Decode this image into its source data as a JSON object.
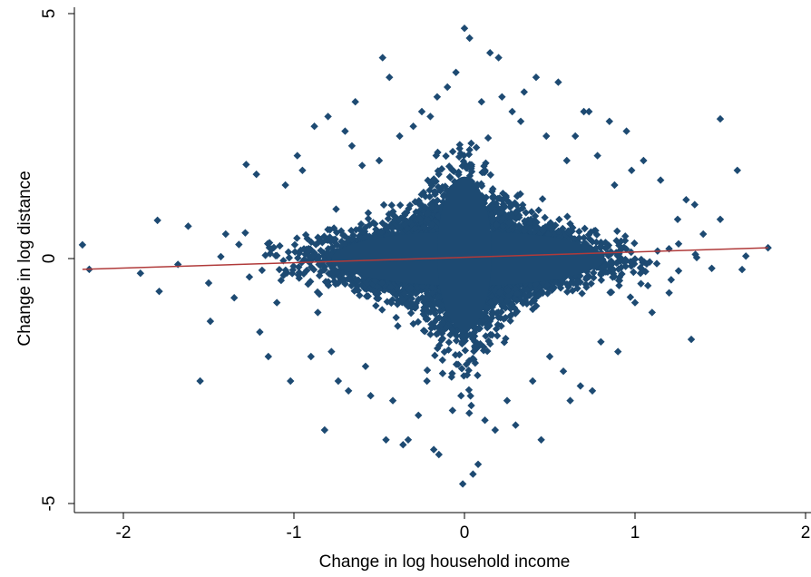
{
  "chart_data": {
    "type": "scatter",
    "title": "",
    "xlabel": "Change in log household income",
    "ylabel": "Change in log distance",
    "xlim": [
      -2.3,
      2.0
    ],
    "ylim": [
      -5.2,
      5.0
    ],
    "xticks": [
      -2,
      -1,
      0,
      1,
      2
    ],
    "yticks": [
      -5,
      0,
      5
    ],
    "xtick_labels": [
      "-2",
      "-1",
      "0",
      "1",
      "2"
    ],
    "ytick_labels": [
      "-5",
      "0",
      "5"
    ],
    "grid": false,
    "legend": "none",
    "series": [
      {
        "marker": "diamond",
        "color": "#1d4a72",
        "note_points_sampled": "approximate outer points read from figure; dense core generated",
        "points": [
          [
            -2.24,
            0.28
          ],
          [
            -2.2,
            -0.22
          ],
          [
            -1.9,
            -0.3
          ],
          [
            -1.8,
            0.78
          ],
          [
            -1.79,
            -0.67
          ],
          [
            -1.68,
            -0.12
          ],
          [
            -1.62,
            0.66
          ],
          [
            -1.55,
            -2.5
          ],
          [
            -1.5,
            -0.5
          ],
          [
            -1.49,
            -1.28
          ],
          [
            -1.4,
            0.5
          ],
          [
            -1.35,
            -0.8
          ],
          [
            -1.28,
            1.92
          ],
          [
            -1.22,
            1.72
          ],
          [
            -1.2,
            -1.5
          ],
          [
            -1.15,
            -2.0
          ],
          [
            -1.1,
            -0.9
          ],
          [
            -1.05,
            1.5
          ],
          [
            -1.02,
            -2.5
          ],
          [
            -0.98,
            2.1
          ],
          [
            -0.95,
            1.8
          ],
          [
            -0.9,
            -2.0
          ],
          [
            -0.88,
            2.7
          ],
          [
            -0.86,
            -1.1
          ],
          [
            -0.82,
            -3.5
          ],
          [
            -0.8,
            2.9
          ],
          [
            -0.78,
            -1.9
          ],
          [
            -0.74,
            -2.5
          ],
          [
            -0.7,
            2.6
          ],
          [
            -0.68,
            -2.7
          ],
          [
            -0.66,
            2.3
          ],
          [
            -0.64,
            3.2
          ],
          [
            -0.6,
            1.9
          ],
          [
            -0.58,
            -2.2
          ],
          [
            -0.55,
            -2.8
          ],
          [
            -0.5,
            2.0
          ],
          [
            -0.48,
            4.1
          ],
          [
            -0.46,
            -3.7
          ],
          [
            -0.44,
            3.7
          ],
          [
            -0.42,
            -2.9
          ],
          [
            -0.38,
            2.5
          ],
          [
            -0.36,
            -3.8
          ],
          [
            -0.33,
            -3.7
          ],
          [
            -0.3,
            2.7
          ],
          [
            -0.27,
            -3.2
          ],
          [
            -0.25,
            3.0
          ],
          [
            -0.22,
            -2.5
          ],
          [
            -0.2,
            2.9
          ],
          [
            -0.18,
            -3.9
          ],
          [
            -0.16,
            3.3
          ],
          [
            -0.15,
            -4.0
          ],
          [
            -0.1,
            3.5
          ],
          [
            -0.07,
            -3.1
          ],
          [
            -0.05,
            3.8
          ],
          [
            -0.02,
            -2.8
          ],
          [
            0.0,
            4.7
          ],
          [
            -0.01,
            -4.6
          ],
          [
            0.03,
            4.5
          ],
          [
            0.04,
            -3.0
          ],
          [
            0.05,
            -4.4
          ],
          [
            0.08,
            -4.2
          ],
          [
            0.1,
            3.2
          ],
          [
            0.12,
            -3.3
          ],
          [
            0.15,
            4.2
          ],
          [
            0.18,
            -3.5
          ],
          [
            0.2,
            4.1
          ],
          [
            0.22,
            3.3
          ],
          [
            0.25,
            -2.9
          ],
          [
            0.28,
            3.0
          ],
          [
            0.3,
            -3.4
          ],
          [
            0.33,
            2.8
          ],
          [
            0.35,
            3.4
          ],
          [
            0.4,
            -2.5
          ],
          [
            0.42,
            3.7
          ],
          [
            0.45,
            -3.7
          ],
          [
            0.48,
            2.5
          ],
          [
            0.5,
            -2.0
          ],
          [
            0.55,
            3.6
          ],
          [
            0.58,
            -2.3
          ],
          [
            0.6,
            2.0
          ],
          [
            0.62,
            -2.9
          ],
          [
            0.65,
            2.5
          ],
          [
            0.68,
            -2.6
          ],
          [
            0.7,
            3.0
          ],
          [
            0.73,
            3.0
          ],
          [
            0.75,
            -2.7
          ],
          [
            0.78,
            2.1
          ],
          [
            0.8,
            -1.7
          ],
          [
            0.85,
            2.8
          ],
          [
            0.88,
            1.5
          ],
          [
            0.9,
            -1.9
          ],
          [
            0.95,
            2.6
          ],
          [
            0.98,
            1.8
          ],
          [
            1.0,
            -0.9
          ],
          [
            1.05,
            2.0
          ],
          [
            1.1,
            -1.1
          ],
          [
            1.15,
            1.6
          ],
          [
            1.2,
            -0.7
          ],
          [
            1.25,
            0.8
          ],
          [
            1.3,
            1.2
          ],
          [
            1.33,
            -1.65
          ],
          [
            1.35,
            1.1
          ],
          [
            1.4,
            0.5
          ],
          [
            1.45,
            -0.2
          ],
          [
            1.5,
            2.85
          ],
          [
            1.5,
            0.8
          ],
          [
            1.6,
            1.8
          ],
          [
            1.65,
            0.05
          ],
          [
            1.78,
            0.22
          ]
        ]
      }
    ],
    "fit_line": {
      "color": "#b03a3a",
      "x": [
        -2.24,
        1.78
      ],
      "y": [
        -0.22,
        0.22
      ]
    }
  }
}
